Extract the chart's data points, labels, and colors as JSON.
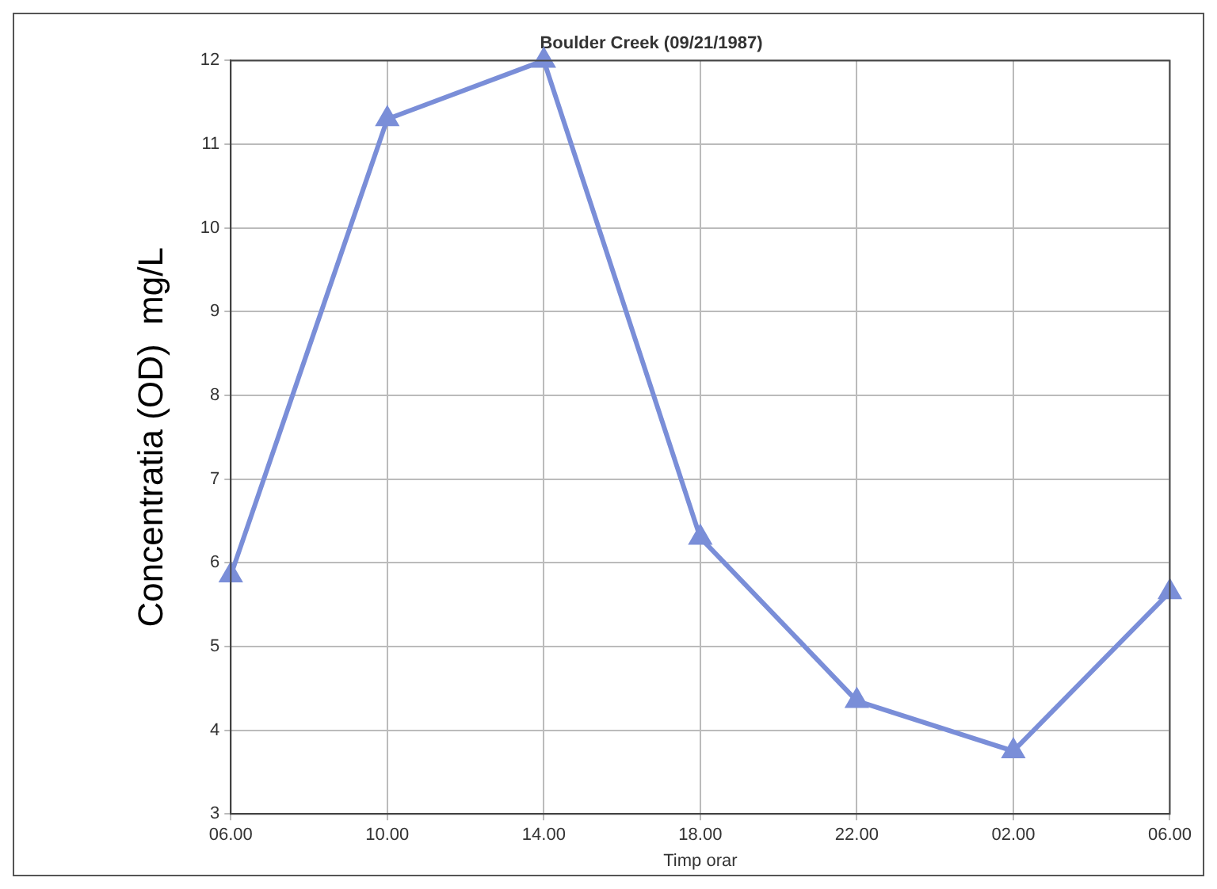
{
  "chart_data": {
    "type": "line",
    "title": "Boulder Creek (09/21/1987)",
    "xlabel": "Timp orar",
    "ylabel": "Concentratia (OD)  mg/L",
    "categories": [
      "06.00",
      "10.00",
      "14.00",
      "18.00",
      "22.00",
      "02.00",
      "06.00"
    ],
    "series": [
      {
        "color": "#7a8ed8",
        "values": [
          5.85,
          11.3,
          12.0,
          6.3,
          4.35,
          3.75,
          5.65
        ]
      }
    ],
    "ylim": [
      3,
      12
    ],
    "yticks": [
      3,
      4,
      5,
      6,
      7,
      8,
      9,
      10,
      11,
      12
    ],
    "grid": true,
    "marker": "triangle",
    "line_style": "solid",
    "legend": false
  }
}
